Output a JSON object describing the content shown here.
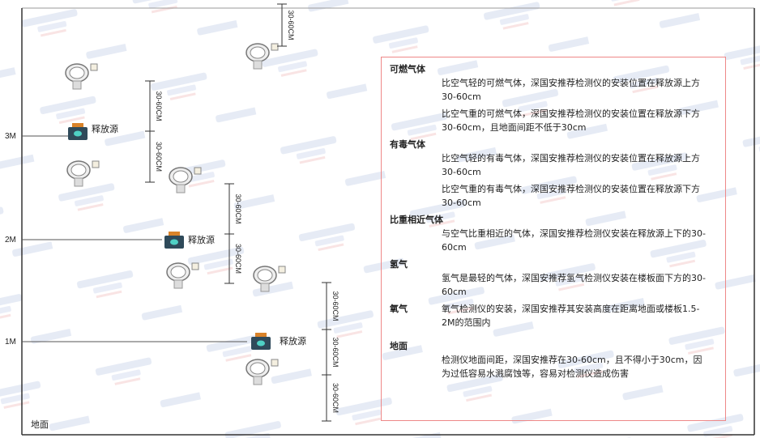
{
  "watermark": "SINGOAN 深国安",
  "levels": [
    "3M",
    "2M",
    "1M"
  ],
  "ground_label": "地面",
  "source_label": "释放源",
  "dimension_label": "30-60CM",
  "colors": {
    "frame": "#333333",
    "notes_border": "#ee8888",
    "source_body": "#2f4a5a",
    "source_cap": "#d9832a",
    "source_icon": "#4fd1c5"
  },
  "notes": {
    "flammable": {
      "title": "可燃气体",
      "light": "比空气轻的可燃气体，深国安推荐检测仪的安装位置在释放源上方30-60cm",
      "heavy": "比空气重的可燃气体，深国安推荐检测仪的安装位置在释放源下方30-60cm，且地面间距不低于30cm"
    },
    "toxic": {
      "title": "有毒气体",
      "light": "比空气轻的有毒气体，深国安推荐检测仪的安装位置在释放源上方30-60cm",
      "heavy": "比空气重的有毒气体，深国安推荐检测仪的安装位置在释放源下方30-60cm"
    },
    "similar": {
      "title": "比重相近气体",
      "text": "与空气比重相近的气体，深国安推荐检测仪安装在释放源上下的30-60cm"
    },
    "hydrogen": {
      "title": "氢气",
      "text": "氢气是最轻的气体，深国安推荐氢气检测仪安装在楼板面下方的30-60cm"
    },
    "oxygen": {
      "title": "氧气",
      "text": "氧气检测仪的安装，深国安推荐其安装高度在距离地面或楼板1.5-2M的范围内"
    },
    "ground": {
      "title": "地面",
      "text": "检测仪地面间距，深国安推荐在30-60cm，且不得小于30cm，因为过低容易水溅腐蚀等，容易对检测仪造成伤害"
    }
  }
}
